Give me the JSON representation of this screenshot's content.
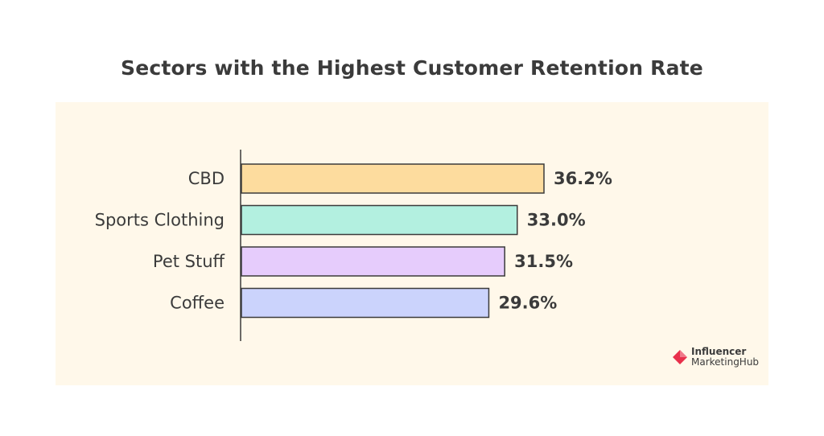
{
  "chart_data": {
    "type": "bar",
    "orientation": "horizontal",
    "title": "Sectors with the Highest Customer Retention Rate",
    "categories": [
      "CBD",
      "Sports Clothing",
      "Pet Stuff",
      "Coffee"
    ],
    "values": [
      36.2,
      33.0,
      31.5,
      29.6
    ],
    "value_labels": [
      "36.2%",
      "33.0%",
      "31.5%",
      "29.6%"
    ],
    "unit": "%",
    "colors": [
      "#fddc9e",
      "#b3f0e0",
      "#e6ccfc",
      "#cbd3fc"
    ],
    "border_color": "#3b3b3b",
    "xlim": [
      0,
      36.2
    ],
    "grid": false
  },
  "branding": {
    "line1": "Influencer",
    "line2": "MarketingHub",
    "accent_color": "#e8304b"
  }
}
